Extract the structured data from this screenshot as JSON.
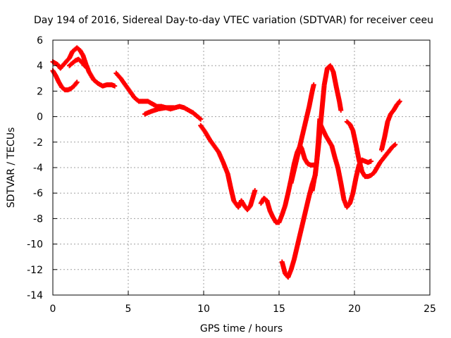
{
  "chart_data": {
    "type": "scatter",
    "title": "Day 194 of 2016, Sidereal Day-to-day VTEC variation (SDTVAR) for receiver ceeu",
    "xlabel": "GPS time / hours",
    "ylabel": "SDTVAR / TECUs",
    "xlim": [
      0,
      25
    ],
    "ylim": [
      -14,
      6
    ],
    "x_ticks": [
      0,
      5,
      10,
      15,
      20,
      25
    ],
    "y_ticks": [
      -14,
      -12,
      -10,
      -8,
      -6,
      -4,
      -2,
      0,
      2,
      4,
      6
    ],
    "grid": true,
    "marker": "+",
    "color": "#ff0000",
    "series": [
      {
        "name": "SDTVAR",
        "segments": [
          [
            [
              0.0,
              4.3
            ],
            [
              0.3,
              4.1
            ],
            [
              0.5,
              3.8
            ],
            [
              0.8,
              4.2
            ],
            [
              1.1,
              4.6
            ],
            [
              1.3,
              5.1
            ],
            [
              1.6,
              5.4
            ],
            [
              1.8,
              5.2
            ],
            [
              2.0,
              4.8
            ],
            [
              2.2,
              4.1
            ],
            [
              2.4,
              3.5
            ],
            [
              2.7,
              2.9
            ],
            [
              3.0,
              2.6
            ],
            [
              3.3,
              2.4
            ],
            [
              3.6,
              2.5
            ],
            [
              3.9,
              2.5
            ],
            [
              4.1,
              2.4
            ]
          ],
          [
            [
              0.0,
              3.6
            ],
            [
              0.2,
              3.2
            ],
            [
              0.4,
              2.7
            ],
            [
              0.6,
              2.3
            ],
            [
              0.8,
              2.1
            ],
            [
              1.0,
              2.1
            ],
            [
              1.2,
              2.2
            ],
            [
              1.4,
              2.4
            ],
            [
              1.6,
              2.7
            ]
          ],
          [
            [
              1.1,
              4.0
            ],
            [
              1.3,
              4.2
            ],
            [
              1.5,
              4.4
            ],
            [
              1.7,
              4.5
            ],
            [
              1.9,
              4.3
            ],
            [
              2.1,
              4.0
            ],
            [
              2.3,
              3.8
            ]
          ],
          [
            [
              4.2,
              3.4
            ],
            [
              4.5,
              3.0
            ],
            [
              4.8,
              2.5
            ],
            [
              5.1,
              2.0
            ],
            [
              5.4,
              1.5
            ],
            [
              5.7,
              1.2
            ],
            [
              6.0,
              1.2
            ],
            [
              6.3,
              1.2
            ],
            [
              6.6,
              1.0
            ],
            [
              6.9,
              0.8
            ],
            [
              7.2,
              0.8
            ],
            [
              7.5,
              0.7
            ],
            [
              7.8,
              0.6
            ],
            [
              8.1,
              0.7
            ],
            [
              8.4,
              0.8
            ],
            [
              8.7,
              0.7
            ],
            [
              9.0,
              0.5
            ],
            [
              9.3,
              0.3
            ],
            [
              9.6,
              0.0
            ],
            [
              9.8,
              -0.2
            ]
          ],
          [
            [
              6.1,
              0.2
            ],
            [
              6.5,
              0.4
            ],
            [
              7.0,
              0.6
            ],
            [
              7.5,
              0.7
            ],
            [
              8.0,
              0.7
            ]
          ],
          [
            [
              9.8,
              -0.7
            ],
            [
              10.1,
              -1.2
            ],
            [
              10.4,
              -1.8
            ],
            [
              10.7,
              -2.3
            ],
            [
              11.0,
              -2.8
            ],
            [
              11.3,
              -3.6
            ],
            [
              11.6,
              -4.5
            ],
            [
              11.8,
              -5.6
            ],
            [
              12.0,
              -6.6
            ],
            [
              12.3,
              -7.1
            ],
            [
              12.5,
              -6.6
            ],
            [
              12.7,
              -7.0
            ],
            [
              12.9,
              -7.3
            ],
            [
              13.1,
              -7.0
            ],
            [
              13.3,
              -6.2
            ],
            [
              13.4,
              -5.8
            ]
          ],
          [
            [
              13.8,
              -6.8
            ],
            [
              14.0,
              -6.4
            ],
            [
              14.2,
              -6.6
            ],
            [
              14.4,
              -7.4
            ],
            [
              14.6,
              -7.9
            ],
            [
              14.8,
              -8.3
            ],
            [
              15.0,
              -8.3
            ],
            [
              15.2,
              -7.7
            ],
            [
              15.4,
              -7.0
            ],
            [
              15.6,
              -6.0
            ],
            [
              15.8,
              -4.9
            ],
            [
              16.0,
              -3.7
            ],
            [
              16.2,
              -2.8
            ],
            [
              16.4,
              -2.3
            ],
            [
              16.5,
              -2.5
            ],
            [
              16.7,
              -3.3
            ],
            [
              16.9,
              -3.7
            ],
            [
              17.1,
              -3.8
            ],
            [
              17.3,
              -3.8
            ]
          ],
          [
            [
              15.2,
              -11.4
            ],
            [
              15.4,
              -12.3
            ],
            [
              15.6,
              -12.6
            ],
            [
              15.8,
              -12.0
            ],
            [
              16.0,
              -11.2
            ],
            [
              16.2,
              -10.2
            ],
            [
              16.4,
              -9.2
            ],
            [
              16.6,
              -8.2
            ],
            [
              16.8,
              -7.2
            ],
            [
              17.0,
              -6.2
            ],
            [
              17.2,
              -5.3
            ],
            [
              17.4,
              -4.6
            ],
            [
              17.5,
              -3.5
            ],
            [
              17.6,
              -2.0
            ],
            [
              17.7,
              -0.2
            ]
          ],
          [
            [
              15.8,
              -5.2
            ],
            [
              16.0,
              -4.2
            ],
            [
              16.2,
              -3.2
            ],
            [
              16.4,
              -2.2
            ],
            [
              16.6,
              -1.2
            ],
            [
              16.8,
              -0.2
            ],
            [
              17.0,
              0.8
            ],
            [
              17.2,
              2.0
            ],
            [
              17.3,
              2.5
            ]
          ],
          [
            [
              17.2,
              -5.8
            ],
            [
              17.4,
              -4.5
            ],
            [
              17.6,
              -2.5
            ],
            [
              17.8,
              0.0
            ],
            [
              18.0,
              2.5
            ],
            [
              18.2,
              3.8
            ],
            [
              18.4,
              4.0
            ],
            [
              18.6,
              3.5
            ],
            [
              18.8,
              2.3
            ],
            [
              19.0,
              1.2
            ],
            [
              19.1,
              0.5
            ]
          ],
          [
            [
              17.7,
              -0.5
            ],
            [
              17.9,
              -1.0
            ],
            [
              18.1,
              -1.5
            ],
            [
              18.3,
              -1.9
            ],
            [
              18.5,
              -2.3
            ],
            [
              18.7,
              -3.2
            ],
            [
              18.9,
              -4.0
            ],
            [
              19.1,
              -5.2
            ],
            [
              19.3,
              -6.5
            ],
            [
              19.5,
              -7.1
            ],
            [
              19.7,
              -6.8
            ],
            [
              19.9,
              -6.0
            ],
            [
              20.1,
              -4.8
            ],
            [
              20.3,
              -3.8
            ],
            [
              20.5,
              -3.4
            ],
            [
              20.7,
              -3.5
            ],
            [
              20.9,
              -3.6
            ],
            [
              21.1,
              -3.5
            ]
          ],
          [
            [
              19.5,
              -0.4
            ],
            [
              19.7,
              -0.6
            ],
            [
              19.9,
              -1.1
            ],
            [
              20.1,
              -2.2
            ],
            [
              20.3,
              -3.4
            ],
            [
              20.5,
              -4.3
            ],
            [
              20.7,
              -4.7
            ],
            [
              20.9,
              -4.7
            ],
            [
              21.1,
              -4.6
            ],
            [
              21.3,
              -4.4
            ],
            [
              21.5,
              -4.0
            ],
            [
              21.7,
              -3.6
            ],
            [
              21.9,
              -3.3
            ],
            [
              22.1,
              -3.0
            ],
            [
              22.3,
              -2.7
            ],
            [
              22.5,
              -2.4
            ],
            [
              22.7,
              -2.2
            ]
          ],
          [
            [
              21.8,
              -2.6
            ],
            [
              22.0,
              -1.6
            ],
            [
              22.2,
              -0.4
            ],
            [
              22.4,
              0.2
            ],
            [
              22.6,
              0.5
            ],
            [
              22.8,
              0.9
            ],
            [
              23.0,
              1.2
            ]
          ]
        ]
      }
    ]
  }
}
